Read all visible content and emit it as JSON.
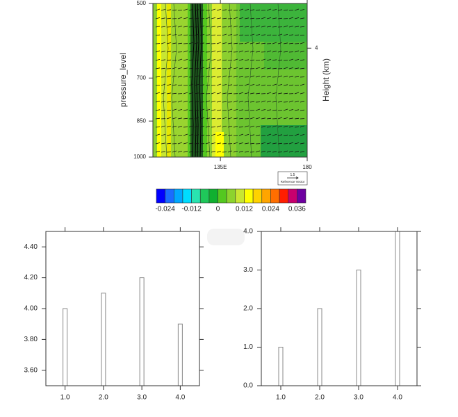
{
  "chart_data": [
    {
      "type": "contour",
      "ylabel": "pressure_level",
      "y2label": "Height (km)",
      "ylim": [
        1000,
        500
      ],
      "ylog": true,
      "yticks": [
        500,
        700,
        850,
        1000
      ],
      "y2lim": [
        0.1,
        5.6
      ],
      "y2ticks": [
        4
      ],
      "xlim": [
        100,
        180
      ],
      "xticks": [
        {
          "value": 135,
          "label": "135E"
        },
        180
      ],
      "ref_vector": {
        "magnitude": 1.5,
        "label": "Reference Vector"
      },
      "colorbar": {
        "lim": [
          -0.028,
          0.04
        ],
        "ticks": [
          -0.024,
          -0.012,
          0,
          0.012,
          0.024,
          0.036
        ],
        "colors": [
          "#0000ff",
          "#1a6cff",
          "#00a8ff",
          "#00dcff",
          "#29e3b0",
          "#1fc85a",
          "#10b030",
          "#54c820",
          "#8cd32e",
          "#c8e632",
          "#ffff00",
          "#ffd200",
          "#ffa500",
          "#ff6e00",
          "#ff1e00",
          "#c8006e",
          "#6e00a0"
        ]
      }
    },
    {
      "type": "bar",
      "x": [
        1,
        2,
        3,
        4
      ],
      "values": [
        4.0,
        4.1,
        4.2,
        3.9
      ],
      "xlim": [
        0.5,
        4.5
      ],
      "xticks": [
        {
          "value": 1,
          "label": "1.0"
        },
        {
          "value": 2,
          "label": "2.0"
        },
        {
          "value": 3,
          "label": "3.0"
        },
        {
          "value": 4,
          "label": "4.0"
        }
      ],
      "ylim": [
        3.5,
        4.5
      ],
      "yticks": [
        {
          "value": 3.6,
          "label": "3.60"
        },
        {
          "value": 3.8,
          "label": "3.80"
        },
        {
          "value": 4.0,
          "label": "4.00"
        },
        {
          "value": 4.2,
          "label": "4.20"
        },
        {
          "value": 4.4,
          "label": "4.40"
        }
      ],
      "color": "#ffffff",
      "edgecolor": "#888888"
    },
    {
      "type": "bar",
      "x": [
        1,
        2,
        3,
        4
      ],
      "values": [
        1,
        2,
        3,
        4
      ],
      "xlim": [
        0.5,
        4.5
      ],
      "xticks": [
        {
          "value": 1,
          "label": "1.0"
        },
        {
          "value": 2,
          "label": "2.0"
        },
        {
          "value": 3,
          "label": "3.0"
        },
        {
          "value": 4,
          "label": "4.0"
        }
      ],
      "ylim": [
        0,
        4
      ],
      "yticks": [
        {
          "value": 0,
          "label": "0.0"
        },
        {
          "value": 1,
          "label": "1.0"
        },
        {
          "value": 2,
          "label": "2.0"
        },
        {
          "value": 3,
          "label": "3.0"
        },
        {
          "value": 4,
          "label": "4.0"
        }
      ],
      "color": "#ffffff",
      "edgecolor": "#888888"
    }
  ]
}
